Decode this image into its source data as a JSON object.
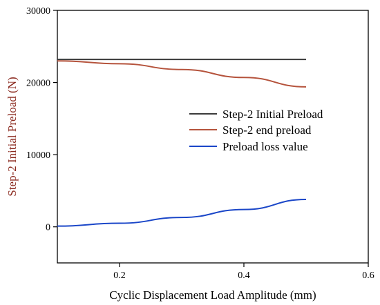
{
  "chart_data": {
    "type": "line",
    "title": "",
    "xlabel": "Cyclic Displacement Load Amplitude (mm)",
    "ylabel": "Step-2 Initial Preload (N)",
    "xlim": [
      0.1,
      0.6
    ],
    "ylim": [
      -5000,
      30000
    ],
    "xticks": [
      "0.2",
      "0.4",
      "0.6"
    ],
    "yticks": [
      "0",
      "10000",
      "20000",
      "30000"
    ],
    "grid": false,
    "legend_position": "right-center",
    "series": [
      {
        "name": "Step-2 Initial Preload",
        "color": "#3a3a3a",
        "x": [
          0.1,
          0.2,
          0.3,
          0.4,
          0.5
        ],
        "y": [
          23200,
          23200,
          23200,
          23200,
          23200
        ]
      },
      {
        "name": "Step-2 end preload",
        "color": "#b5533c",
        "x": [
          0.1,
          0.2,
          0.3,
          0.4,
          0.5
        ],
        "y": [
          23000,
          22600,
          21800,
          20700,
          19400
        ]
      },
      {
        "name": "Preload loss value",
        "color": "#1a46c8",
        "x": [
          0.1,
          0.2,
          0.3,
          0.4,
          0.5
        ],
        "y": [
          100,
          500,
          1300,
          2400,
          3800
        ]
      }
    ],
    "colors": {
      "axis": "#000000",
      "ylabel_color": "#8b2a1f",
      "xlabel_color": "#000000"
    }
  }
}
